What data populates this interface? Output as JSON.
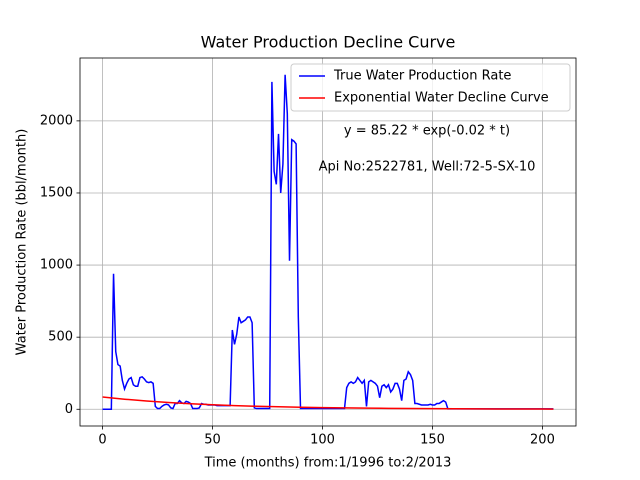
{
  "chart_data": {
    "type": "line",
    "title": "Water Production Decline Curve",
    "xlabel": "Time (months) from:1/1996 to:2/2013",
    "ylabel": "Water Production Rate (bbl/month)",
    "annotations": [
      "y = 85.22 * exp(-0.02 * t)",
      "Api No:2522781, Well:72-5-SX-10"
    ],
    "xlim": [
      -10.25,
      215.25
    ],
    "ylim": [
      -116,
      2436
    ],
    "xticks": [
      0,
      50,
      100,
      150,
      200
    ],
    "yticks": [
      0,
      500,
      1000,
      1500,
      2000
    ],
    "grid": true,
    "legend": "upper right",
    "series": [
      {
        "name": "True Water Production Rate",
        "color": "#0000ff",
        "x": [
          0,
          1,
          2,
          3,
          4,
          5,
          6,
          7,
          8,
          9,
          10,
          11,
          12,
          13,
          14,
          15,
          16,
          17,
          18,
          19,
          20,
          21,
          22,
          23,
          24,
          25,
          26,
          27,
          28,
          29,
          30,
          31,
          32,
          33,
          34,
          35,
          36,
          37,
          38,
          39,
          40,
          41,
          42,
          43,
          44,
          45,
          46,
          47,
          48,
          49,
          50,
          51,
          52,
          53,
          54,
          55,
          56,
          57,
          58,
          59,
          60,
          61,
          62,
          63,
          64,
          65,
          66,
          67,
          68,
          69,
          70,
          71,
          72,
          73,
          74,
          75,
          76,
          77,
          78,
          79,
          80,
          81,
          82,
          83,
          84,
          85,
          86,
          87,
          88,
          89,
          90,
          91,
          92,
          93,
          94,
          95,
          96,
          97,
          98,
          99,
          100,
          101,
          102,
          103,
          104,
          105,
          106,
          107,
          108,
          109,
          110,
          111,
          112,
          113,
          114,
          115,
          116,
          117,
          118,
          119,
          120,
          121,
          122,
          123,
          124,
          125,
          126,
          127,
          128,
          129,
          130,
          131,
          132,
          133,
          134,
          135,
          136,
          137,
          138,
          139,
          140,
          141,
          142,
          143,
          144,
          145,
          146,
          147,
          148,
          149,
          150,
          151,
          152,
          153,
          154,
          155,
          156,
          157,
          158,
          159,
          160,
          161,
          162,
          163,
          164,
          165,
          166,
          167,
          168,
          169,
          170,
          171,
          172,
          173,
          174,
          175,
          176,
          177,
          178,
          179,
          180,
          181,
          182,
          183,
          184,
          185,
          186,
          187,
          188,
          189,
          190,
          191,
          192,
          193,
          194,
          195,
          196,
          197,
          198,
          199,
          200,
          201,
          202,
          203,
          204,
          205
        ],
        "values": [
          0,
          0,
          0,
          0,
          0,
          940,
          400,
          310,
          300,
          200,
          140,
          180,
          210,
          220,
          170,
          160,
          160,
          220,
          225,
          210,
          190,
          185,
          190,
          180,
          20,
          5,
          5,
          20,
          30,
          35,
          30,
          10,
          5,
          40,
          40,
          60,
          45,
          40,
          55,
          50,
          40,
          5,
          5,
          5,
          10,
          40,
          35,
          35,
          30,
          30,
          30,
          30,
          25,
          25,
          25,
          25,
          25,
          25,
          25,
          550,
          450,
          520,
          640,
          600,
          610,
          620,
          640,
          640,
          600,
          10,
          5,
          5,
          5,
          5,
          5,
          5,
          5,
          2270,
          1650,
          1560,
          1910,
          1500,
          1700,
          2320,
          2050,
          1030,
          1870,
          1860,
          1840,
          640,
          5,
          5,
          5,
          5,
          5,
          5,
          5,
          5,
          5,
          5,
          5,
          5,
          5,
          5,
          5,
          5,
          5,
          5,
          5,
          5,
          5,
          150,
          180,
          190,
          180,
          190,
          220,
          200,
          180,
          200,
          20,
          190,
          200,
          190,
          180,
          160,
          80,
          160,
          170,
          150,
          170,
          120,
          140,
          180,
          180,
          140,
          60,
          200,
          210,
          260,
          240,
          200,
          40,
          40,
          35,
          30,
          30,
          30,
          30,
          35,
          30,
          30,
          40,
          40,
          50,
          60,
          50,
          3,
          3,
          3,
          3,
          3,
          3,
          3,
          3,
          3,
          3,
          3,
          3,
          3,
          3,
          3,
          3,
          3,
          3,
          3,
          3,
          3,
          3,
          3,
          3,
          3,
          3,
          3,
          3,
          3,
          3,
          3,
          3,
          3,
          3,
          3,
          3,
          3,
          3,
          3,
          3,
          3,
          3,
          3,
          3,
          3,
          3,
          3,
          3,
          3
        ]
      },
      {
        "name": "Exponential Water Decline Curve",
        "color": "#ff0000",
        "x": [
          0,
          10,
          20,
          30,
          40,
          50,
          60,
          70,
          80,
          90,
          100,
          110,
          120,
          130,
          140,
          150,
          160,
          170,
          180,
          190,
          200,
          205
        ],
        "values": [
          85.22,
          69.77,
          57.12,
          46.77,
          38.29,
          31.35,
          25.67,
          21.02,
          17.21,
          14.09,
          11.53,
          9.44,
          7.73,
          6.33,
          5.18,
          4.24,
          3.47,
          2.84,
          2.33,
          1.91,
          1.56,
          1.41
        ]
      }
    ]
  }
}
